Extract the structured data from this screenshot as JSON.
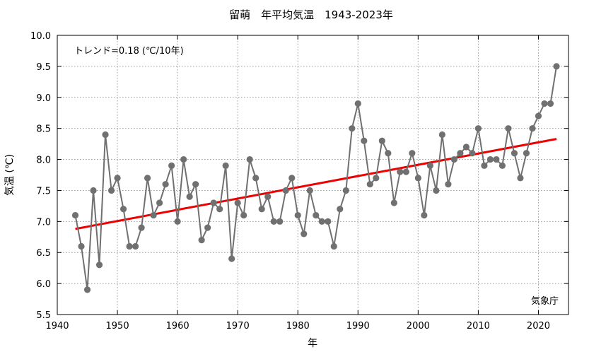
{
  "chart_data": {
    "type": "line",
    "title": "留萌　年平均気温　1943-2023年",
    "xlabel": "年",
    "ylabel": "気温 (℃)",
    "xlim": [
      1940,
      2025
    ],
    "ylim": [
      5.5,
      10.0
    ],
    "xticks": [
      1940,
      1950,
      1960,
      1970,
      1980,
      1990,
      2000,
      2010,
      2020
    ],
    "yticks": [
      "5.5",
      "6.0",
      "6.5",
      "7.0",
      "7.5",
      "8.0",
      "8.5",
      "9.0",
      "9.5",
      "10.0"
    ],
    "grid": true,
    "trend_label": "トレンド=0.18 (℃/10年)",
    "trend": {
      "x": [
        1943,
        2023
      ],
      "y": [
        6.88,
        8.33
      ]
    },
    "source": "気象庁",
    "colors": {
      "series": "#707070",
      "trend": "#ee0000"
    },
    "series": [
      {
        "x": [
          1943,
          1944,
          1945,
          1946,
          1947,
          1948,
          1949,
          1950,
          1951,
          1952,
          1953,
          1954,
          1955,
          1956,
          1957,
          1958,
          1959,
          1960,
          1961,
          1962,
          1963,
          1964,
          1965,
          1966,
          1967,
          1968,
          1969,
          1970,
          1971,
          1972,
          1973,
          1974,
          1975,
          1976,
          1977,
          1978,
          1979,
          1980,
          1981,
          1982,
          1983,
          1984,
          1985,
          1986,
          1987,
          1988,
          1989,
          1990,
          1991,
          1992,
          1993,
          1994,
          1995,
          1996,
          1997,
          1998,
          1999,
          2000,
          2001,
          2002,
          2003,
          2004,
          2005,
          2006,
          2007,
          2008,
          2009,
          2010,
          2011,
          2012,
          2013,
          2014,
          2015,
          2016,
          2017,
          2018,
          2019,
          2020,
          2021,
          2022,
          2023
        ],
        "values": [
          7.1,
          6.6,
          5.9,
          7.5,
          6.3,
          8.4,
          7.5,
          7.7,
          7.2,
          6.6,
          6.6,
          6.9,
          7.7,
          7.1,
          7.3,
          7.6,
          7.9,
          7.0,
          8.0,
          7.4,
          7.6,
          6.7,
          6.9,
          7.3,
          7.2,
          7.9,
          6.4,
          7.3,
          7.1,
          8.0,
          7.7,
          7.2,
          7.4,
          7.0,
          7.0,
          7.5,
          7.7,
          7.1,
          6.8,
          7.5,
          7.1,
          7.0,
          7.0,
          6.6,
          7.2,
          7.5,
          8.5,
          8.9,
          8.3,
          7.6,
          7.7,
          8.3,
          8.1,
          7.3,
          7.8,
          7.8,
          8.1,
          7.7,
          7.1,
          7.9,
          7.5,
          8.4,
          7.6,
          8.0,
          8.1,
          8.2,
          8.1,
          8.5,
          7.9,
          8.0,
          8.0,
          7.9,
          8.5,
          8.1,
          7.7,
          8.1,
          8.5,
          8.7,
          8.9,
          8.9,
          9.5
        ]
      }
    ]
  }
}
